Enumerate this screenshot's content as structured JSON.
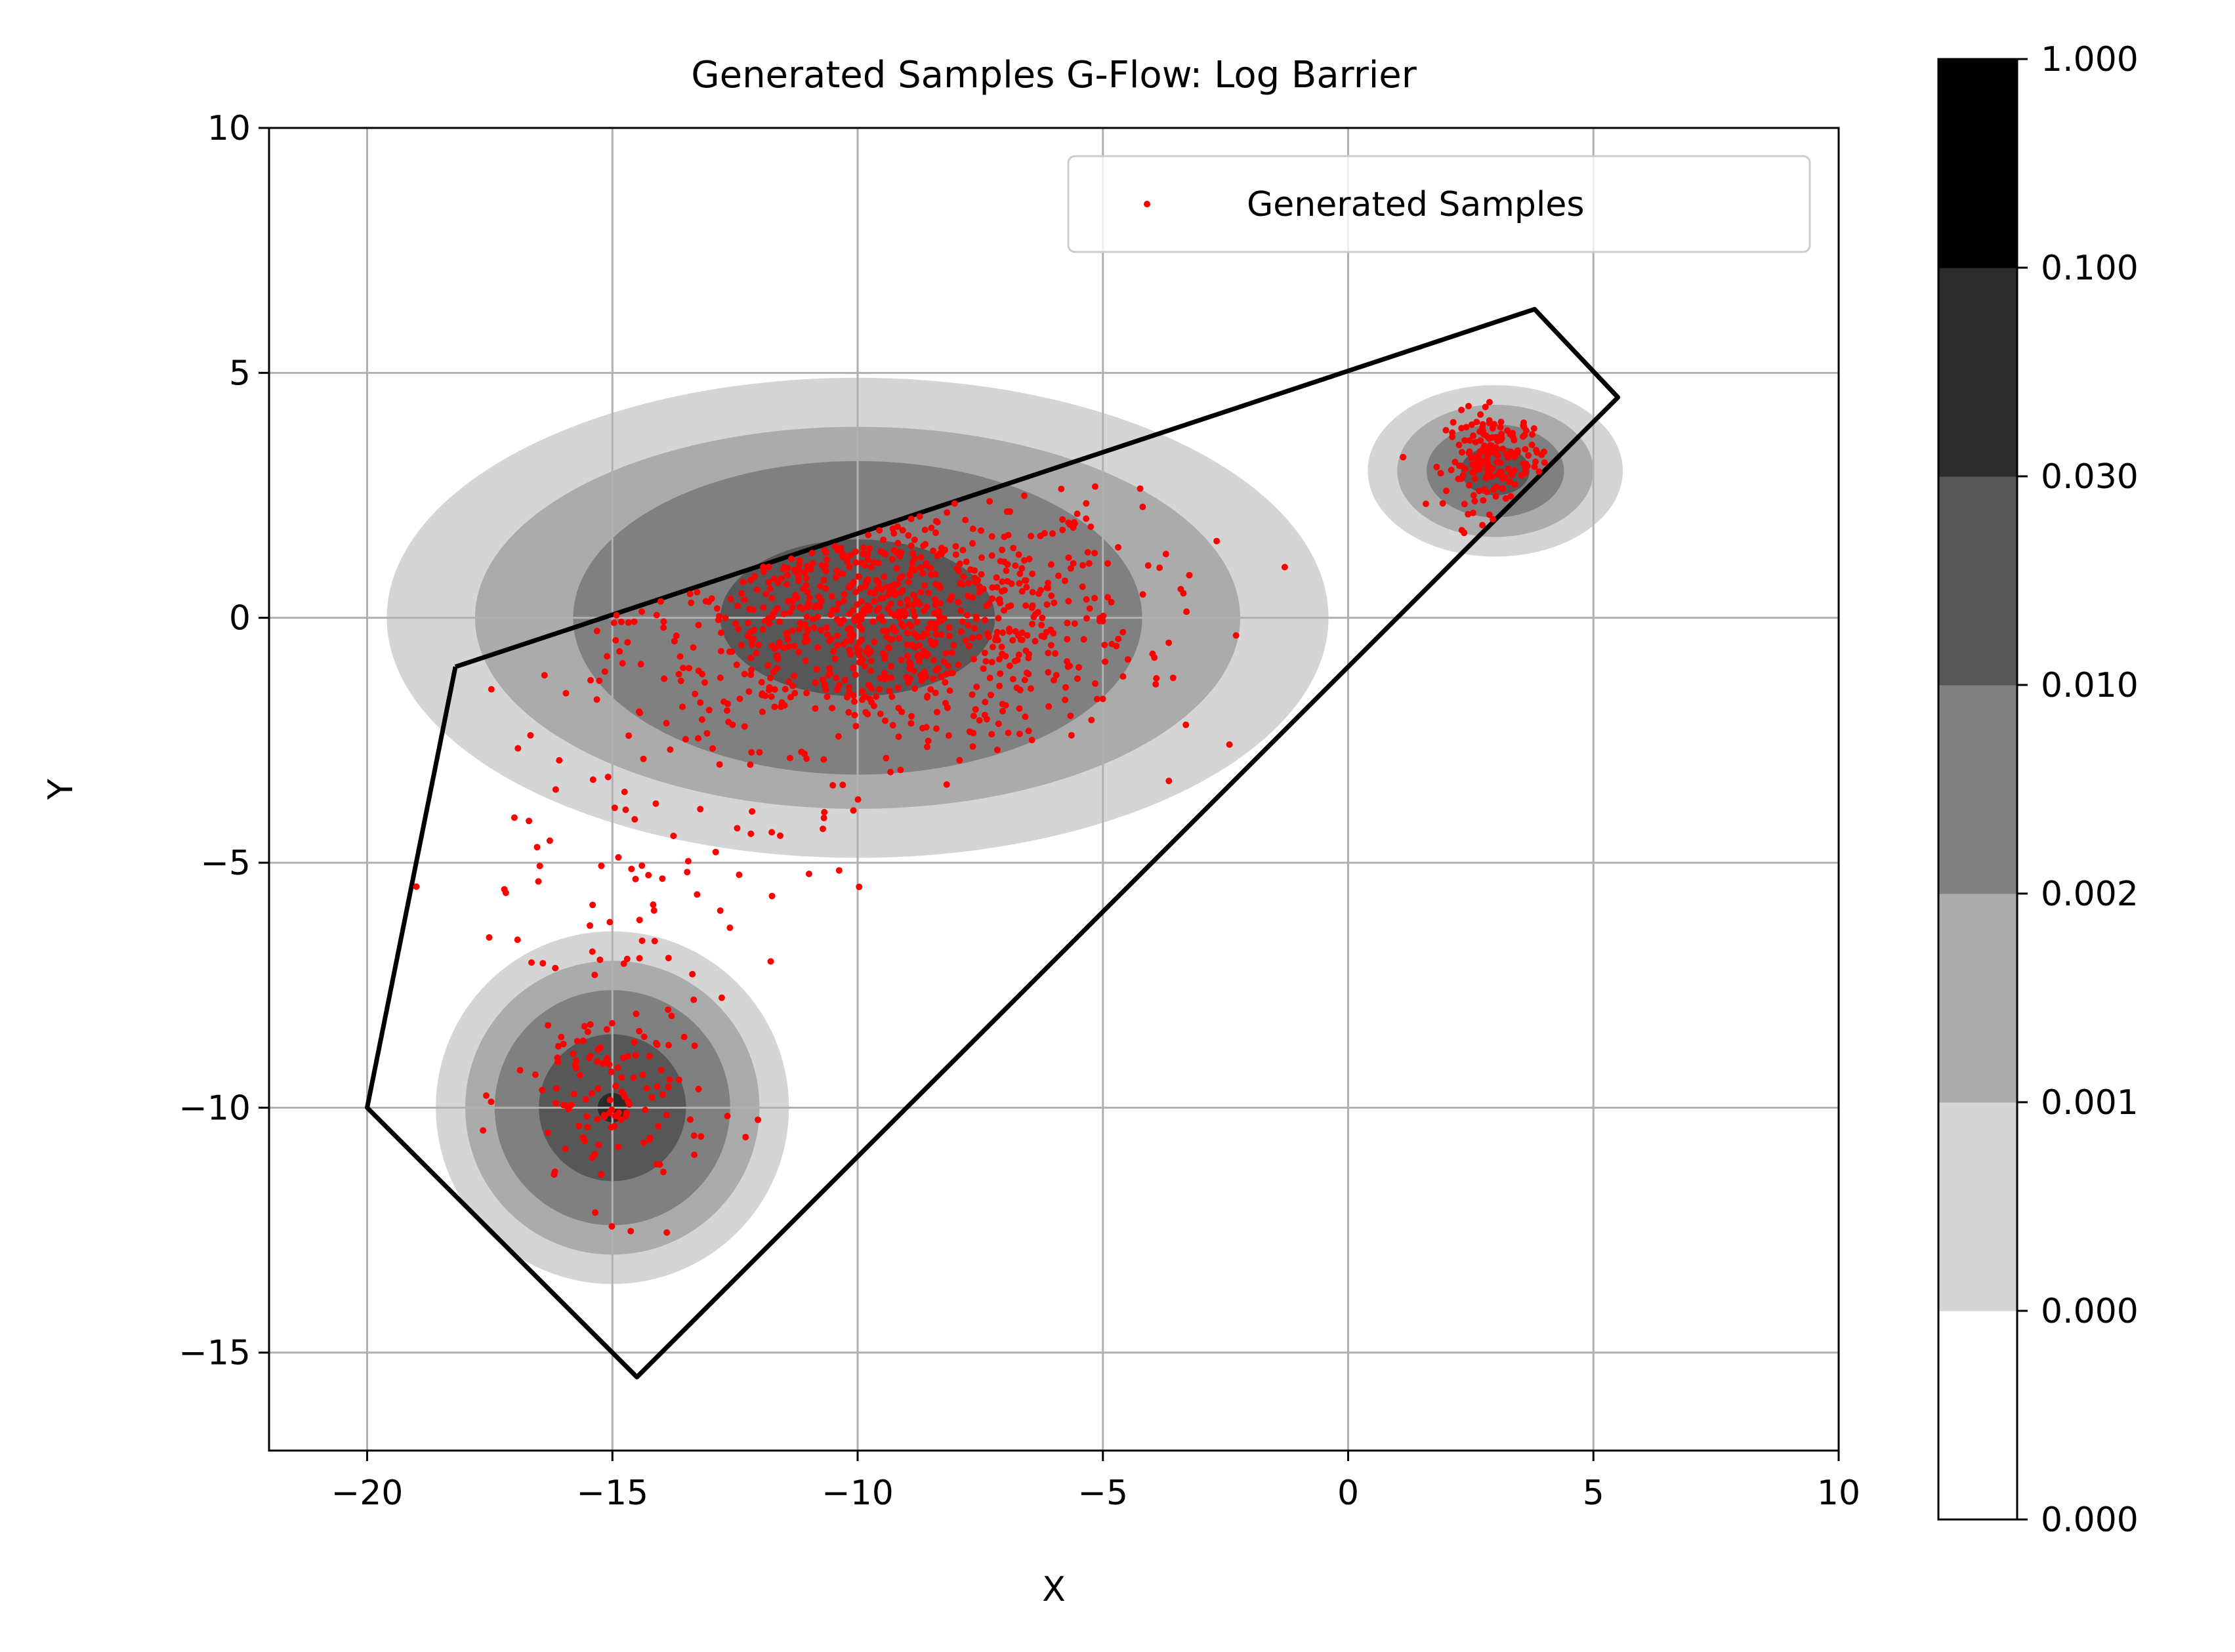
{
  "chart_data": {
    "type": "scatter",
    "title": "Generated Samples G-Flow: Log Barrier",
    "xlabel": "X",
    "ylabel": "Y",
    "xlim": [
      -22,
      10
    ],
    "ylim": [
      -17,
      10
    ],
    "xticks": [
      -20,
      -15,
      -10,
      -5,
      0,
      5,
      10
    ],
    "yticks": [
      -15,
      -10,
      -5,
      0,
      5,
      10
    ],
    "xtick_labels": [
      "−20",
      "−15",
      "−10",
      "−5",
      "0",
      "5",
      "10"
    ],
    "ytick_labels": [
      "−15",
      "−10",
      "−5",
      "0",
      "5",
      "10"
    ],
    "grid": true,
    "legend": {
      "placement": "top-right",
      "entries": [
        "Generated Samples"
      ]
    },
    "boundary_polygon": [
      [
        -18.2,
        -1.0
      ],
      [
        3.8,
        6.3
      ],
      [
        5.5,
        4.5
      ],
      [
        -14.5,
        -15.5
      ],
      [
        -20.0,
        -10.0
      ]
    ],
    "density_components": [
      {
        "center": [
          -10.0,
          0.0
        ],
        "rx": [
          2.8,
          5.8,
          7.8,
          9.6
        ],
        "ry": [
          1.6,
          3.2,
          3.9,
          4.9
        ]
      },
      {
        "center": [
          3.0,
          3.0
        ],
        "rx": [
          0.7,
          1.4,
          2.0,
          2.6
        ],
        "ry": [
          0.5,
          0.95,
          1.35,
          1.75
        ]
      },
      {
        "center": [
          -15.0,
          -10.0
        ],
        "rx": [
          0.3,
          1.5,
          2.4,
          3.0,
          3.6
        ],
        "ry": [
          0.3,
          1.5,
          2.4,
          3.0,
          3.6
        ]
      }
    ],
    "colorbar": {
      "tick_labels": [
        "0.000",
        "0.000",
        "0.001",
        "0.002",
        "0.010",
        "0.030",
        "0.100",
        "1.000"
      ],
      "band_colors": [
        "#ffffff",
        "#d5d5d5",
        "#ababab",
        "#808080",
        "#575757",
        "#2b2b2b",
        "#000000"
      ]
    },
    "series": [
      {
        "name": "Generated Samples",
        "color": "#ff0000",
        "clusters": [
          {
            "center": [
              -9.5,
              0.0
            ],
            "sx": 2.6,
            "sy": 1.3,
            "n": 900
          },
          {
            "center": [
              3.0,
              3.2
            ],
            "sx": 0.5,
            "sy": 0.5,
            "n": 180
          },
          {
            "center": [
              -15.0,
              -9.8
            ],
            "sx": 1.0,
            "sy": 1.1,
            "n": 130
          },
          {
            "center": [
              -14.5,
              -5.2
            ],
            "sx": 2.0,
            "sy": 1.5,
            "n": 70
          }
        ]
      }
    ]
  }
}
